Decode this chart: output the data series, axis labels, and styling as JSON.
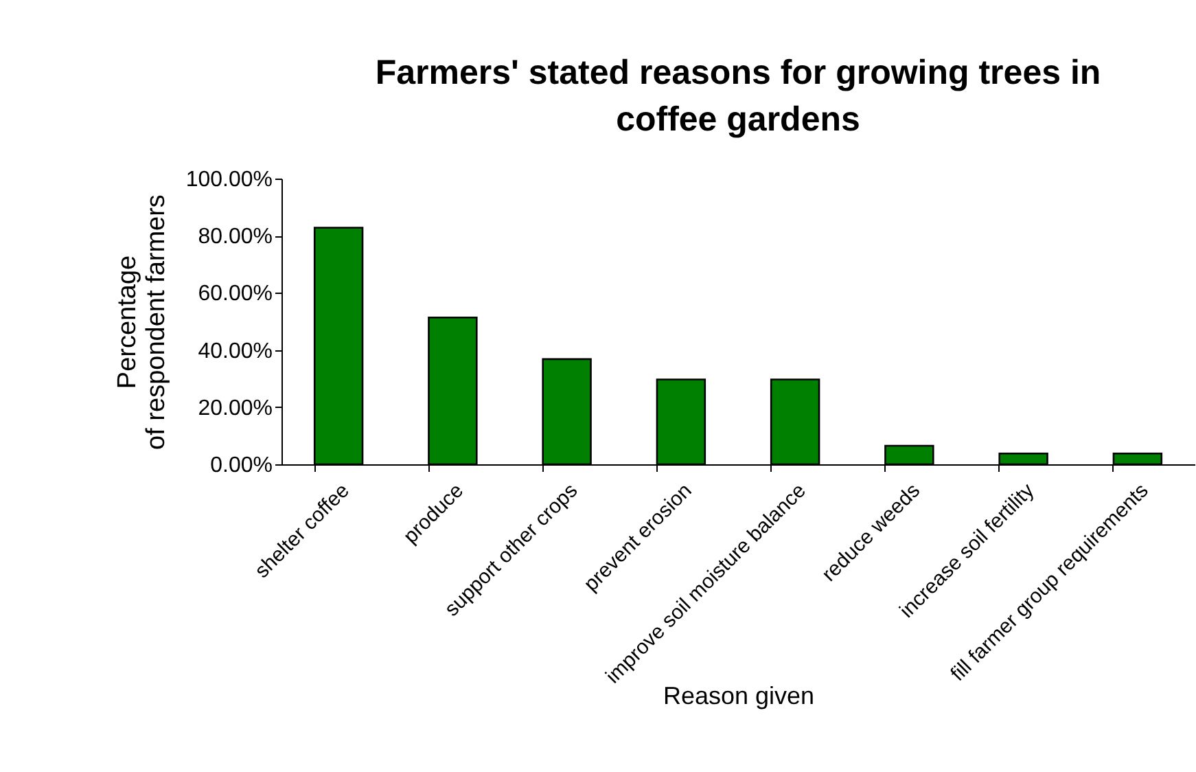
{
  "chart_data": {
    "type": "bar",
    "title": "Farmers' stated reasons for growing trees in coffee gardens",
    "xlabel": "Reason given",
    "ylabel": "Percentage\nof respondent farmers",
    "categories": [
      "shelter coffee",
      "produce",
      "support other crops",
      "prevent erosion",
      "improve soil moisture balance",
      "reduce weeds",
      "increase soil fertility",
      "fill farmer group requirements"
    ],
    "values": [
      82.8,
      51.4,
      36.8,
      29.7,
      29.7,
      6.5,
      3.8,
      3.8
    ],
    "color": "#008000",
    "ylim": [
      0,
      100
    ],
    "yticks": [
      {
        "value": 0,
        "label": "0.00%"
      },
      {
        "value": 20,
        "label": "20.00%"
      },
      {
        "value": 40,
        "label": "40.00%"
      },
      {
        "value": 60,
        "label": "60.00%"
      },
      {
        "value": 80,
        "label": "80.00%"
      },
      {
        "value": 100,
        "label": "100.00%"
      }
    ]
  }
}
